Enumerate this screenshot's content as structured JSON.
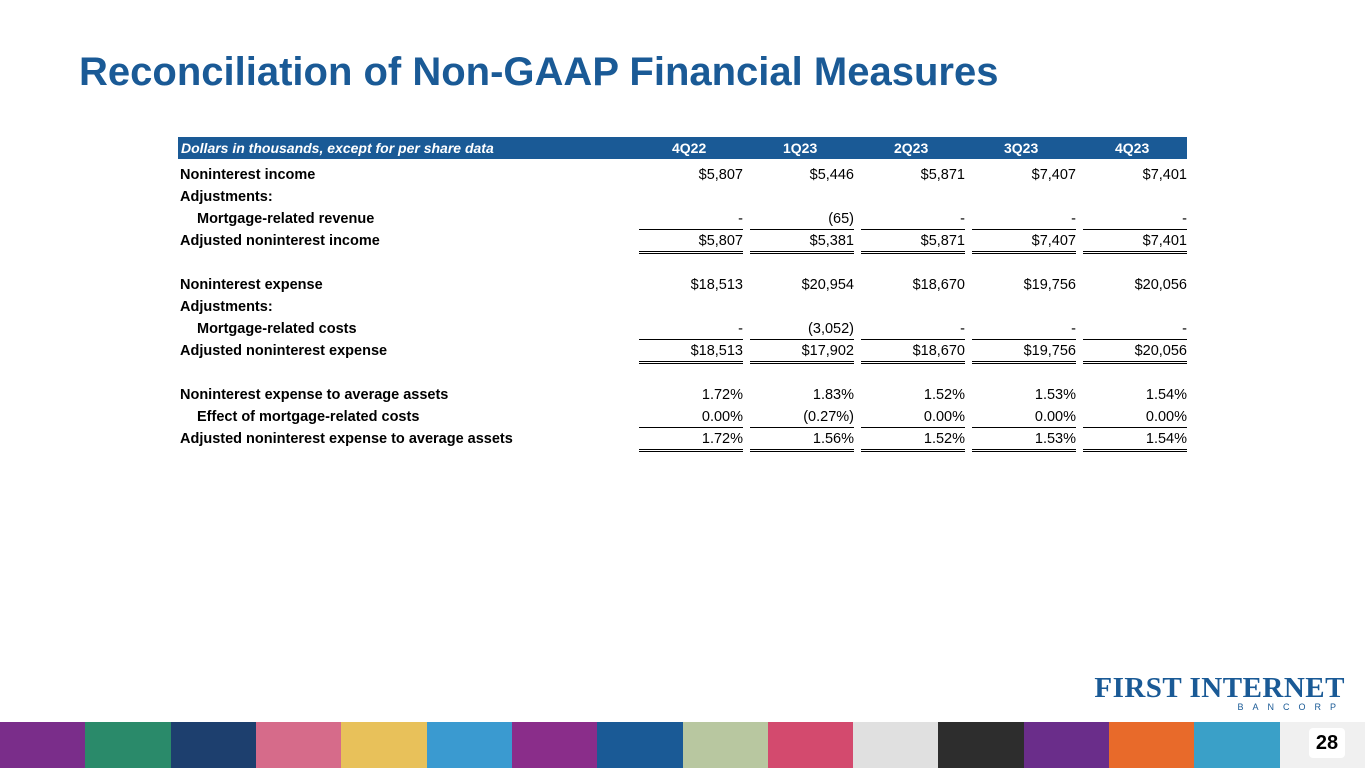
{
  "title": "Reconciliation of Non-GAAP Financial Measures",
  "table": {
    "caption": "Dollars in thousands, except for per share data",
    "columns": [
      "4Q22",
      "1Q23",
      "2Q23",
      "3Q23",
      "4Q23"
    ],
    "rows": [
      {
        "label": "Noninterest income",
        "values": [
          "$5,807",
          "$5,446",
          "$5,871",
          "$7,407",
          "$7,401"
        ]
      },
      {
        "label": "Adjustments:",
        "values": [
          "",
          "",
          "",
          "",
          ""
        ]
      },
      {
        "label": "Mortgage-related revenue",
        "values": [
          "-",
          "(65)",
          "-",
          "-",
          "-"
        ]
      },
      {
        "label": "Adjusted noninterest income",
        "values": [
          "$5,807",
          "$5,381",
          "$5,871",
          "$7,407",
          "$7,401"
        ]
      },
      {
        "label": "Noninterest expense",
        "values": [
          "$18,513",
          "$20,954",
          "$18,670",
          "$19,756",
          "$20,056"
        ]
      },
      {
        "label": "Adjustments:",
        "values": [
          "",
          "",
          "",
          "",
          ""
        ]
      },
      {
        "label": "Mortgage-related costs",
        "values": [
          "-",
          "(3,052)",
          "-",
          "-",
          "-"
        ]
      },
      {
        "label": "Adjusted noninterest expense",
        "values": [
          "$18,513",
          "$17,902",
          "$18,670",
          "$19,756",
          "$20,056"
        ]
      },
      {
        "label": "Noninterest expense to average assets",
        "values": [
          "1.72%",
          "1.83%",
          "1.52%",
          "1.53%",
          "1.54%"
        ]
      },
      {
        "label": "Effect of mortgage-related costs",
        "values": [
          "0.00%",
          "(0.27%)",
          "0.00%",
          "0.00%",
          "0.00%"
        ]
      },
      {
        "label": "Adjusted noninterest expense to average assets",
        "values": [
          "1.72%",
          "1.56%",
          "1.52%",
          "1.53%",
          "1.54%"
        ]
      }
    ]
  },
  "logo": {
    "main": "FIRST INTERNET",
    "sub": "BANCORP"
  },
  "page_number": "28",
  "colors": {
    "brand_blue": "#1a5a96",
    "logo_gold": "#8b6b2e"
  }
}
